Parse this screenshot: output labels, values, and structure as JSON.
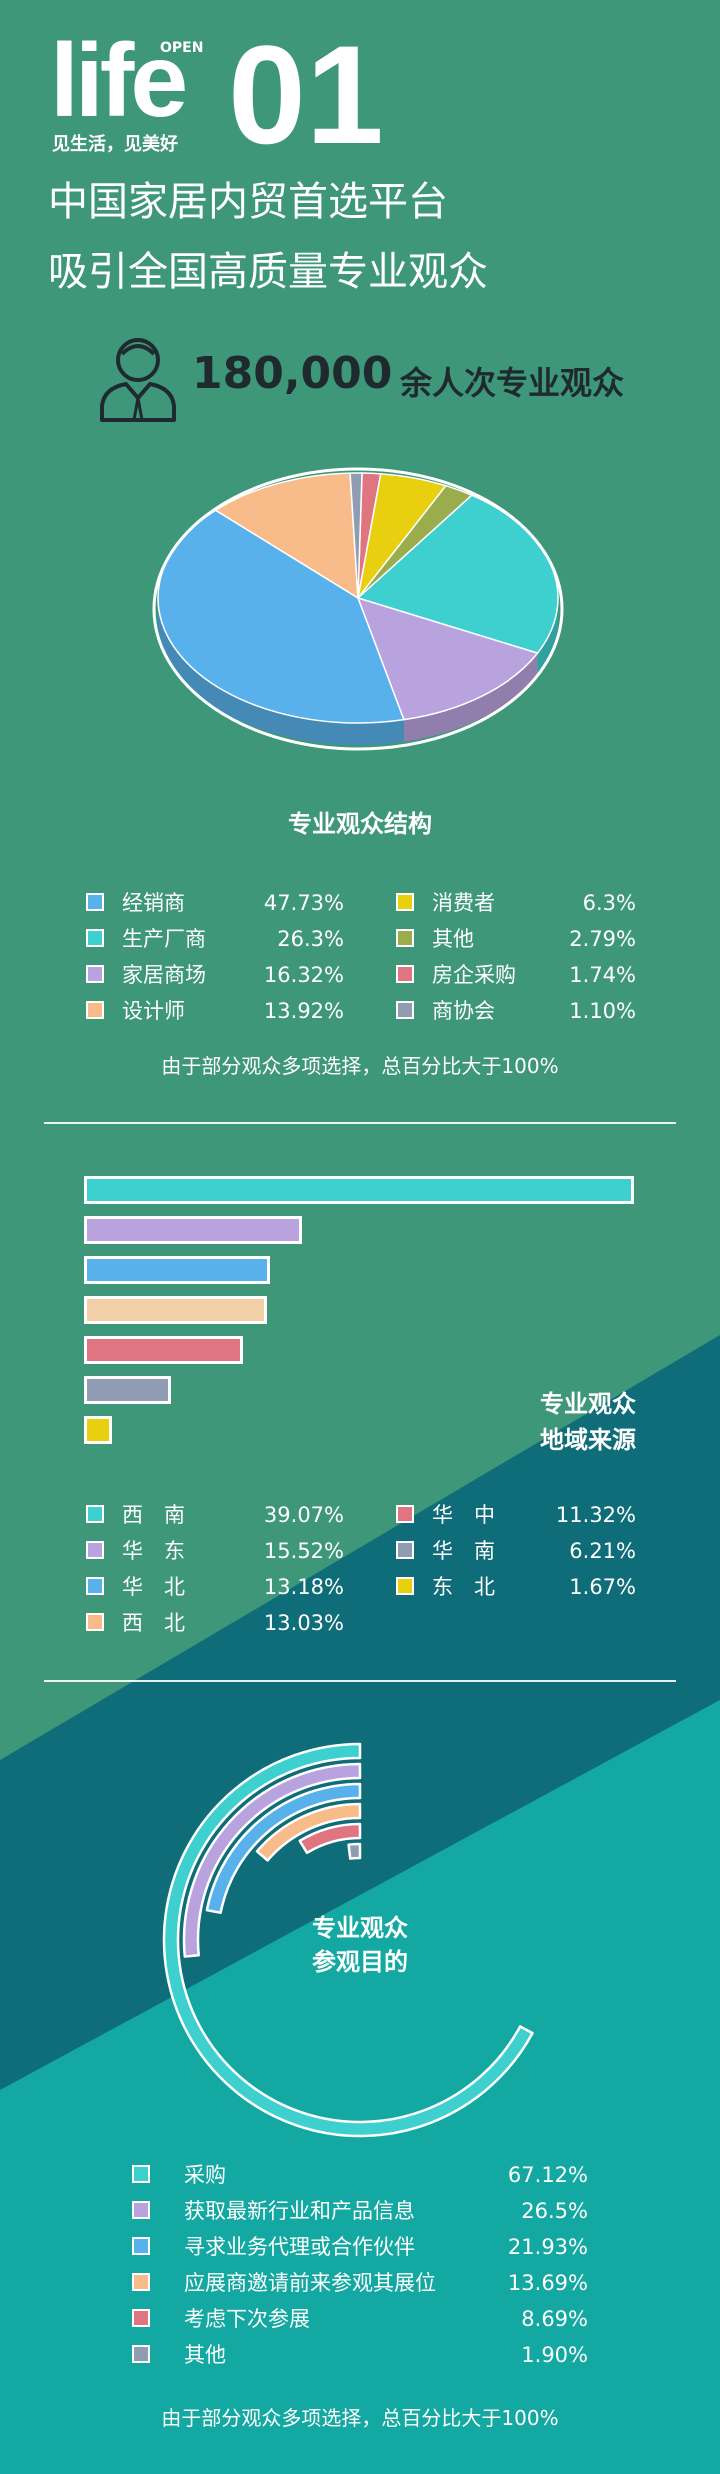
{
  "header": {
    "logo_word": "life",
    "logo_open": "OPEN",
    "logo_number": "01",
    "slogan": "见生活，见美好",
    "headline_line1": "中国家居内贸首选平台",
    "headline_line2": "吸引全国高质量专业观众"
  },
  "audience": {
    "icon": "person-icon",
    "count": "180,000",
    "unit": "余人次专业观众"
  },
  "colors": {
    "bg_top": "#3f9779",
    "bg_mid": "#0f6d79",
    "bg_bottom": "#13a8a2",
    "cyan": "#3ecfcf",
    "purple": "#b8a3de",
    "blue": "#58b1ea",
    "orange": "#f8bb8a",
    "red": "#df7580",
    "gray": "#8f9cb1",
    "yellow": "#e8cf10",
    "olive": "#9aac4c",
    "peach": "#f2d0a7"
  },
  "chart_data": [
    {
      "type": "pie",
      "title": "专业观众结构",
      "slices": [
        {
          "name": "经销商",
          "value": 47.73,
          "label": "47.73%",
          "color": "#58b1ea"
        },
        {
          "name": "生产厂商",
          "value": 26.3,
          "label": "26.3%",
          "color": "#3ecfcf"
        },
        {
          "name": "家居商场",
          "value": 16.32,
          "label": "16.32%",
          "color": "#b8a3de"
        },
        {
          "name": "设计师",
          "value": 13.92,
          "label": "13.92%",
          "color": "#f8bb8a"
        },
        {
          "name": "消费者",
          "value": 6.3,
          "label": "6.3%",
          "color": "#e8cf10"
        },
        {
          "name": "其他",
          "value": 2.79,
          "label": "2.79%",
          "color": "#9aac4c"
        },
        {
          "name": "房企采购",
          "value": 1.74,
          "label": "1.74%",
          "color": "#df7580"
        },
        {
          "name": "商协会",
          "value": 1.1,
          "label": "1.10%",
          "color": "#8f9cb1"
        }
      ],
      "note": "由于部分观众多项选择，总百分比大于100%"
    },
    {
      "type": "bar",
      "orientation": "horizontal",
      "title_line1": "专业观众",
      "title_line2": "地域来源",
      "series": [
        {
          "name": "西　南",
          "value": 39.07,
          "label": "39.07%",
          "color": "#3ecfcf"
        },
        {
          "name": "华　东",
          "value": 15.52,
          "label": "15.52%",
          "color": "#b8a3de"
        },
        {
          "name": "华　北",
          "value": 13.18,
          "label": "13.18%",
          "color": "#58b1ea"
        },
        {
          "name": "西　北",
          "value": 13.03,
          "label": "13.03%",
          "color": "#f8bb8a"
        },
        {
          "name": "华　中",
          "value": 11.32,
          "label": "11.32%",
          "color": "#df7580"
        },
        {
          "name": "华　南",
          "value": 6.21,
          "label": "6.21%",
          "color": "#8f9cb1"
        },
        {
          "name": "东　北",
          "value": 1.67,
          "label": "1.67%",
          "color": "#e8cf10"
        }
      ],
      "bar_fills": [
        "#3ecfcf",
        "#b8a3de",
        "#58b1ea",
        "#f2d0a7",
        "#df7580",
        "#8f9cb1",
        "#e8cf10"
      ]
    },
    {
      "type": "radial-bar",
      "title_line1": "专业观众",
      "title_line2": "参观目的",
      "series": [
        {
          "name": "采购",
          "value": 67.12,
          "label": "67.12%",
          "color": "#3ecfcf"
        },
        {
          "name": "获取最新行业和产品信息",
          "value": 26.5,
          "label": "26.5%",
          "color": "#b8a3de"
        },
        {
          "name": "寻求业务代理或合作伙伴",
          "value": 21.93,
          "label": "21.93%",
          "color": "#58b1ea"
        },
        {
          "name": "应展商邀请前来参观其展位",
          "value": 13.69,
          "label": "13.69%",
          "color": "#f8bb8a"
        },
        {
          "name": "考虑下次参展",
          "value": 8.69,
          "label": "8.69%",
          "color": "#df7580"
        },
        {
          "name": "其他",
          "value": 1.9,
          "label": "1.90%",
          "color": "#8f9cb1"
        }
      ],
      "note": "由于部分观众多项选择，总百分比大于100%"
    }
  ]
}
